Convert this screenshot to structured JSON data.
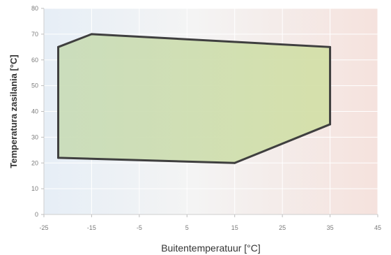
{
  "chart_data": {
    "type": "area",
    "title": "",
    "xlabel": "Buitentemperatuur [°C]",
    "ylabel": "Temperatura zasilania [°C]",
    "xlim": [
      -25,
      45
    ],
    "ylim": [
      0,
      80
    ],
    "xticks": [
      -25,
      -15,
      -5,
      5,
      15,
      25,
      35,
      45
    ],
    "yticks": [
      0,
      10,
      20,
      30,
      40,
      50,
      60,
      70,
      80
    ],
    "grid": true,
    "series": [
      {
        "points": [
          {
            "x": -22,
            "y": 65
          },
          {
            "x": -15,
            "y": 70
          },
          {
            "x": 35,
            "y": 65
          },
          {
            "x": 35,
            "y": 35
          },
          {
            "x": 15,
            "y": 20
          },
          {
            "x": -22,
            "y": 22
          }
        ]
      }
    ],
    "colors": {
      "fill": "#d4e0a8",
      "outline": "#3f3f3f",
      "background_cold": "#e6eef6",
      "background_warm": "#f5e2dd",
      "grid": "#ffffff"
    }
  }
}
